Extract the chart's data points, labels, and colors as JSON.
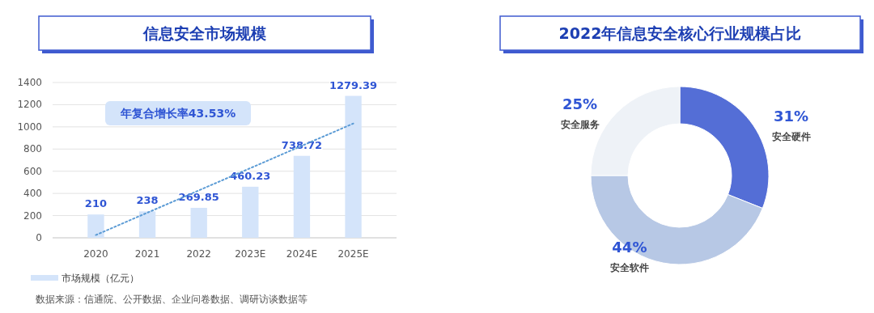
{
  "chart_data": [
    {
      "type": "bar",
      "title": "信息安全市场规模",
      "categories": [
        "2020",
        "2021",
        "2022",
        "2023E",
        "2024E",
        "2025E"
      ],
      "series": [
        {
          "name": "市场规模（亿元）",
          "color": "#d4e4fa",
          "values": [
            210,
            238,
            269.85,
            460.23,
            738.72,
            1279.39
          ],
          "value_labels": [
            "210",
            "238",
            "269.85",
            "460.23",
            "738.72",
            "1279.39"
          ]
        },
        {
          "type": "line",
          "color": "#5b9bd5",
          "values": [
            25,
            null,
            null,
            null,
            null,
            1030
          ],
          "line_style": "dotted"
        }
      ],
      "ylim": [
        0,
        1400
      ],
      "yticks": [
        0,
        200,
        400,
        600,
        800,
        1000,
        1200,
        1400
      ],
      "grid": "y",
      "legend": "bottom left",
      "annotations": [
        "年复合增长率43.53%",
        "数据来源：信通院、公开数据、企业问卷数据、调研访谈数据等"
      ]
    },
    {
      "type": "donut",
      "title": "2022年信息安全核心行业规模占比",
      "categories": [
        "安全硬件",
        "安全软件",
        "安全服务"
      ],
      "values": [
        31,
        44,
        25
      ],
      "colors": [
        "#546ed6",
        "#b7c8e5",
        "#eef2f7"
      ],
      "value_labels": [
        "31%",
        "44%",
        "25%"
      ],
      "legend": false
    }
  ]
}
